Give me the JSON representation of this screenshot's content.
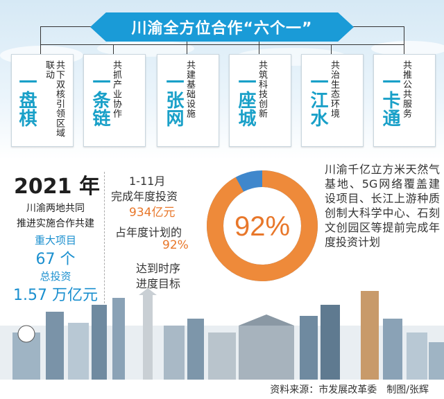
{
  "title": "川渝全方位合作“六个一”",
  "cards": [
    {
      "desc": "共下双核引领区域联动",
      "big": "一盘棋"
    },
    {
      "desc": "共抓产业协作",
      "big": "一条链"
    },
    {
      "desc": "共建基础设施",
      "big": "一张网"
    },
    {
      "desc": "共筑科技创新",
      "big": "一座城"
    },
    {
      "desc": "共治生态环境",
      "big": "一江水"
    },
    {
      "desc": "共推公共服务",
      "big": "一卡通"
    }
  ],
  "left": {
    "year": "2021 年",
    "line1": "川渝两地共同",
    "line2": "推进实施合作共建",
    "projects_label": "重大项目",
    "projects_value": "67 个",
    "invest_label": "总投资",
    "invest_value": "1.57 万亿元"
  },
  "middle": {
    "line1": "1-11月",
    "line2": "完成年度投资",
    "amount": "934亿元",
    "line3": "占年度计划的",
    "percent": "92%",
    "line4": "达到时序",
    "line5": "进度目标"
  },
  "donut": {
    "label": "92%",
    "value": 92,
    "main_color": "#ee8a3a",
    "rest_color": "#3f87cc"
  },
  "right_text": "川渝千亿立方米天然气基地、5G网络覆盖建设项目、长江上游种质创制大科学中心、石刻文创园区等提前完成年度投资计划",
  "footer": "资料来源：市发展改革委　制图/张辉",
  "colors": {
    "accent_blue": "#1a9bd7",
    "accent_orange": "#e8772a"
  }
}
